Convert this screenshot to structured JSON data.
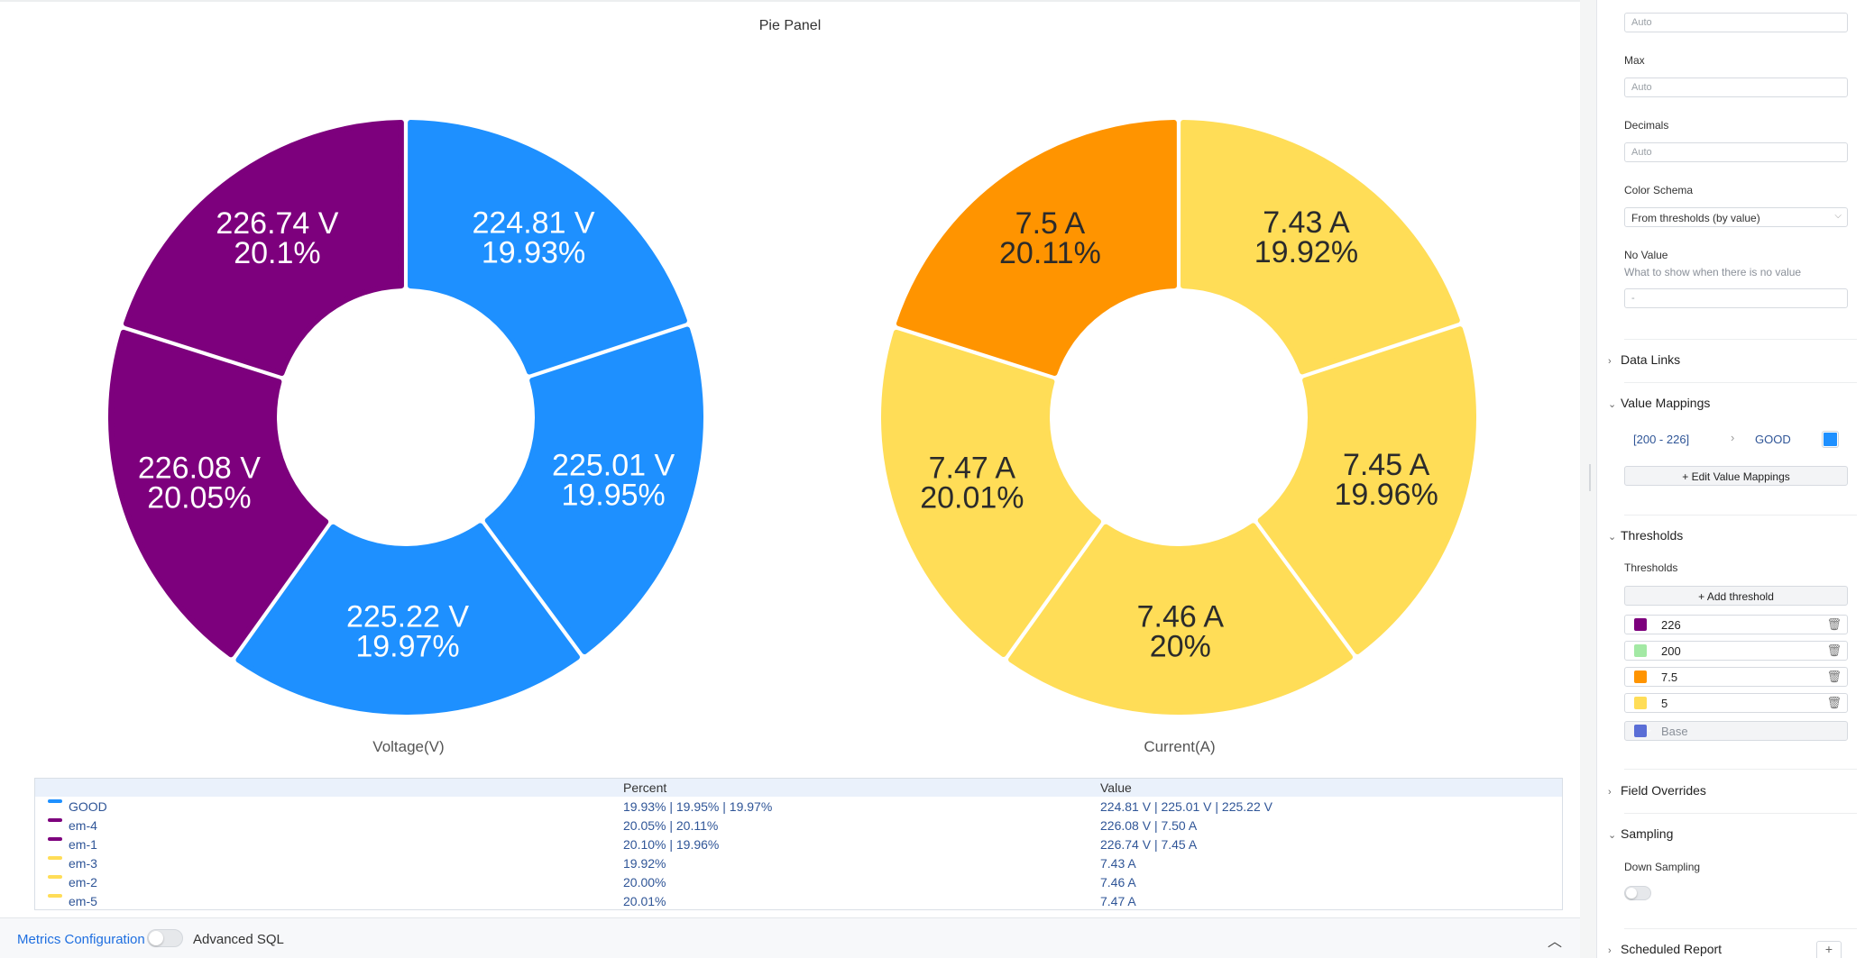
{
  "panel": {
    "title": "Pie Panel"
  },
  "chart_data": [
    {
      "type": "pie",
      "title": "Voltage(V)",
      "unit": "V",
      "slices": [
        {
          "label": "224.81 V",
          "percent": "19.93%",
          "value": 224.81,
          "color": "#1e90ff"
        },
        {
          "label": "225.01 V",
          "percent": "19.95%",
          "value": 225.01,
          "color": "#1e90ff"
        },
        {
          "label": "225.22 V",
          "percent": "19.97%",
          "value": 225.22,
          "color": "#1e90ff"
        },
        {
          "label": "226.08 V",
          "percent": "20.05%",
          "value": 226.08,
          "color": "#7d007d"
        },
        {
          "label": "226.74 V",
          "percent": "20.1%",
          "value": 226.74,
          "color": "#7d007d"
        }
      ]
    },
    {
      "type": "pie",
      "title": "Current(A)",
      "unit": "A",
      "slices": [
        {
          "label": "7.43 A",
          "percent": "19.92%",
          "value": 7.43,
          "color": "#ffdd57"
        },
        {
          "label": "7.45 A",
          "percent": "19.96%",
          "value": 7.45,
          "color": "#ffdd57"
        },
        {
          "label": "7.46 A",
          "percent": "20%",
          "value": 7.46,
          "color": "#ffdd57"
        },
        {
          "label": "7.47 A",
          "percent": "20.01%",
          "value": 7.47,
          "color": "#ffdd57"
        },
        {
          "label": "7.5 A",
          "percent": "20.11%",
          "value": 7.5,
          "color": "#ff9400"
        }
      ]
    }
  ],
  "legend": {
    "headers": {
      "percent": "Percent",
      "value": "Value"
    },
    "rows": [
      {
        "name": "GOOD",
        "color": "#1e90ff",
        "percent": "19.93% | 19.95% | 19.97%",
        "value": "224.81 V | 225.01 V | 225.22 V"
      },
      {
        "name": "em-4",
        "color": "#7d007d",
        "percent": "20.05% | 20.11%",
        "value": "226.08 V | 7.50 A"
      },
      {
        "name": "em-1",
        "color": "#7d007d",
        "percent": "20.10% | 19.96%",
        "value": "226.74 V | 7.45 A"
      },
      {
        "name": "em-3",
        "color": "#ffdd57",
        "percent": "19.92%",
        "value": "7.43 A"
      },
      {
        "name": "em-2",
        "color": "#ffdd57",
        "percent": "20.00%",
        "value": "7.46 A"
      },
      {
        "name": "em-5",
        "color": "#ffdd57",
        "percent": "20.01%",
        "value": "7.47 A"
      }
    ]
  },
  "bottom_bar": {
    "metrics_config": "Metrics Configuration",
    "advanced_sql": "Advanced SQL"
  },
  "sidebar": {
    "min_value": "Auto",
    "max_label": "Max",
    "max_value": "Auto",
    "decimals_label": "Decimals",
    "decimals_value": "Auto",
    "color_schema_label": "Color Schema",
    "color_schema_value": "From thresholds (by value)",
    "no_value_label": "No Value",
    "no_value_hint": "What to show when there is no value",
    "no_value_value": "-",
    "data_links": "Data Links",
    "value_mappings": "Value Mappings",
    "mapping": {
      "range": "[200 - 226]",
      "text": "GOOD",
      "color": "#1e90ff"
    },
    "edit_mappings": "Edit Value Mappings",
    "thresholds_section": "Thresholds",
    "thresholds_label": "Thresholds",
    "add_threshold": "Add threshold",
    "thresholds": [
      {
        "value": "226",
        "color": "#7d007d"
      },
      {
        "value": "200",
        "color": "#a3e9a4"
      },
      {
        "value": "7.5",
        "color": "#ff9400"
      },
      {
        "value": "5",
        "color": "#ffdd57"
      }
    ],
    "base": {
      "value": "Base",
      "color": "#5a6ed6"
    },
    "field_overrides": "Field Overrides",
    "sampling": "Sampling",
    "down_sampling": "Down Sampling",
    "scheduled_report": "Scheduled Report"
  }
}
